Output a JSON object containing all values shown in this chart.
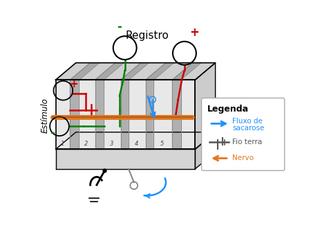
{
  "title": "Registro",
  "ylabel": "Estímulo",
  "legend_title": "Legenda",
  "legend_blue_label1": "Fluxo de",
  "legend_blue_label2": "sacarose",
  "legend_gray_label": "Fio terra",
  "legend_orange_label": "Nervo",
  "blue_color": "#1E90FF",
  "green_color": "#008000",
  "red_color": "#CC0000",
  "orange_color": "#E07820",
  "gray_color": "#555555",
  "slot_labels": [
    "1",
    "2",
    "3",
    "4",
    "5"
  ],
  "box_front_color": "#d8d8d8",
  "box_top_color": "#b8b8b8",
  "box_right_color": "#c8c8c8",
  "box_bottom_color": "#e0e0e0",
  "slot_dark_color": "#999999",
  "slot_light_color": "#e0e0e0"
}
